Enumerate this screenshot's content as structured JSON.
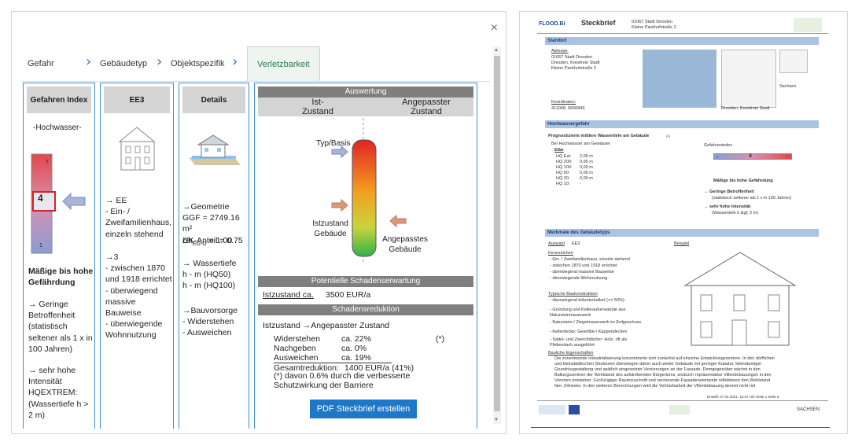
{
  "tabs": [
    {
      "label": "Gefahr"
    },
    {
      "label": "Gebäudetyp"
    },
    {
      "label": "Objektspezifik"
    },
    {
      "label": "Verletzbarkeit"
    }
  ],
  "close_label": "×",
  "col1": {
    "header": "Gefahren Index",
    "hazard": "-Hochwasser-",
    "scale_top": "7",
    "scale_value": "4",
    "scale_bottom": "1",
    "rating": "Mäßige bis hohe Gefährdung",
    "p1": "→ Geringe Betroffenheit (statistisch seltener als 1 x in 100 Jahren)",
    "p2": "→ sehr hohe Intensität HQEXTREM: (Wassertiefe h > 2 m)"
  },
  "col2": {
    "header": "EE3",
    "p1": "→ EE\n- Ein- / Zweifamilienhaus, einzeln stehend",
    "p2": "→3\n- zwischen 1870 und 1918 errichtet\n- überwiegend massive Bauweise\n- überwiegende Wohnnutzung"
  },
  "col3": {
    "header": "Details",
    "p1": "→Geometrie\nGGF = 2749.16 m²\nUK-Anteil = 0.75",
    "dh": "Δh",
    "dh_sub": "EG-G",
    "dh_val": " = 1.00",
    "p2": "→ Wassertiefe\nh - m (HQ50)\nh - m (HQ100)",
    "p3": "→Bauvorsorge\n- Widerstehen\n- Ausweichen"
  },
  "col4": {
    "header": "Auswertung",
    "ist": "Ist-\nZustand",
    "angepasst": "Angepasster\nZustand",
    "typ": "Typ/Basis",
    "ist_geb": "Istzustand\nGebäude",
    "ang_geb": "Angepasstes\nGebäude",
    "pot_header": "Potentielle Schadenserwartung",
    "ist_ca": "Istzustand ca.",
    "ist_ca_val": "3500 EUR/a",
    "red_header": "Schadensreduktion",
    "red_title": "Istzustand →Angepasster Zustand",
    "rows": [
      {
        "label": "Widerstehen",
        "val": "ca.  22%",
        "note": "(*)"
      },
      {
        "label": "Nachgeben",
        "val": "ca.  0%",
        "note": ""
      },
      {
        "label": "Ausweichen",
        "val": "ca.  19%",
        "note": ""
      }
    ],
    "gesamt": "Gesamtreduktion:",
    "gesamt_val": "1400 EUR/a (41%)",
    "footnote": "(*) davon 0.6% durch die verbesserte Schutzwirkung der Barriere",
    "pdf_button": "PDF Steckbrief erstellen"
  },
  "doc": {
    "logo": "FLOOD.Bi",
    "title": "Steckbrief",
    "addr1": "01067 Stadt Dresden",
    "addr2": "Kleine Packhofstraße 2",
    "standort": "Standort",
    "adresse_label": "Adresse:",
    "adresse": "01067 Stadt Dresden\nDresden, Kreisfreie Stadt\nKleine Packhofstraße 2",
    "koord_label": "Koordinaten:",
    "koord": "411068, 5656849",
    "map_label1": "Sachsen",
    "map_label2": "Dresden, Kreisfreie Stadt",
    "hw_header": "Hochwassergefahr",
    "hw_sub": "Prognostizierte mittlere Wassertiefe am Gebäude",
    "hw_sub_note": "(1)",
    "bei_hw": "Bei Hochwasser am Gewässer",
    "elbe": "Elbe",
    "hq_rows": [
      {
        "label": "HQ Ext:",
        "val": "2,05 m"
      },
      {
        "label": "HQ 200:",
        "val": "0,95 m"
      },
      {
        "label": "HQ 100:",
        "val": "0,00 m"
      },
      {
        "label": "HQ 50:",
        "val": "0,00 m"
      },
      {
        "label": "HQ 20:",
        "val": "0,00 m"
      },
      {
        "label": "HQ 10:",
        "val": "-"
      }
    ],
    "gi_label": "Gefahrenindex",
    "gi_min": "1",
    "gi_val": "4",
    "gi_max": "7",
    "gi_rating": "Mäßige bis hohe Gefährdung",
    "gi_p1": "→ Geringe Betroffenheit",
    "gi_p1b": "(statistisch seltener als 1 x in 100 Jahren)",
    "gi_p2": "→ sehr hohe Intensität",
    "gi_p2b": "(Wassertiefe h &gt; 2 m)",
    "mg_header": "Merkmale des Gebäudetyps",
    "auswahl": "Auswahl",
    "auswahl_val": "EE3",
    "beispiel": "Beispiel",
    "kennzeichen": "Kennzeichen",
    "k_lines": [
      "- Ein- / Zweifamilienhaus, einzeln stehend",
      "- zwischen 1870 und 1918 errichtet",
      "- überwiegend massive Bauweise",
      "- überwiegende Wohnnutzung"
    ],
    "typische": "Typische Baukonstruktion",
    "t_lines": [
      "- überwiegend teilunterkellert (<= 50%)",
      "- Gründung und Kelleraußenwände aus",
      "  Natursteinmauerwerk",
      "- Naturstein-/ Ziegelmauerwerk im Erdgeschoss",
      "- Kellerdecke: Gewölbe-/ Kappendecken",
      "- Sattel- und Zwerchdächer: Holz, oft als",
      "  Pfettendach ausgeführt"
    ],
    "bauliche": "Bauliche Eigenschaften",
    "b_lines": [
      "Die zunehmende Industrialisierung konzentrierte sich zunächst auf einzelne Entwicklungszentren. In den dörflichen",
      "und kleinstädtischen Strukturen überwiegen daher auch weiter Gebäude mit geringer Kubatur, kleinräumiger",
      "Grundrissgestaltung und spärlich eingesetzter Verzierungen an der Fassade. Demgegenüber wächst in den",
      "Ballungszentren der Wohlstand des aufstrebenden Bürgertums, wodurch repräsentative Villenbebauungen in den",
      "Vororten entstehen. Großzügiger Raumzuschnitt und verzierende Fassadenelemente reflektieren den Wohlstand",
      "hier. (Hinweis: In den weiteren Berechnungen wird die Verletzbarkeit der Villenbebauung derzeit nicht mit"
    ],
    "footer": "Erstellt: 07.04.2021, 15:37 Uhr   Seite 1   Seite 5",
    "sachsen": "SACHSEN"
  }
}
